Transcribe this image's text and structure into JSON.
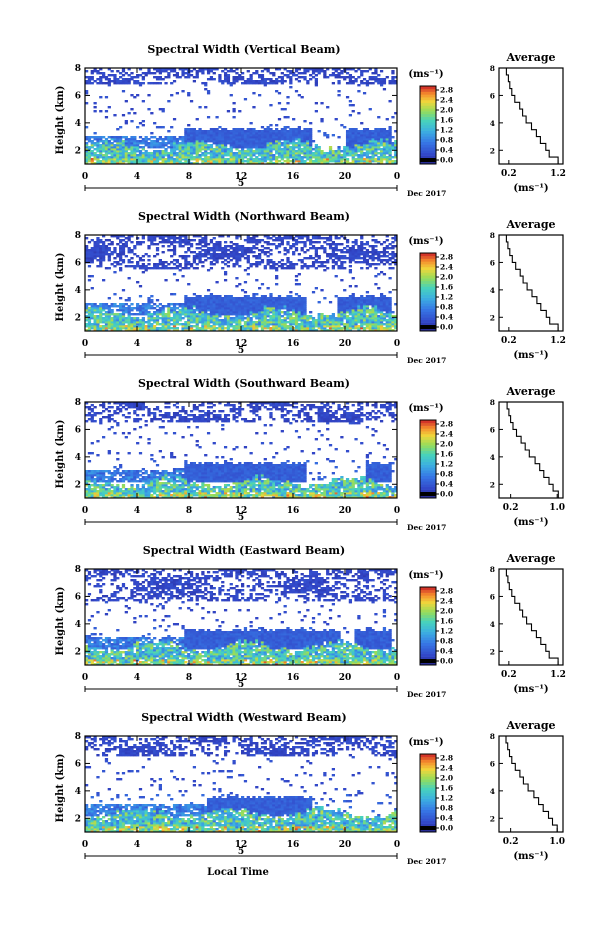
{
  "figure": {
    "xlabel": "Local Time",
    "date_label": "Dec 2017",
    "day_label": "5",
    "ylabel": "Height (km)",
    "avg_title": "Average",
    "unit": "(ms⁻¹)"
  },
  "chart_data": [
    {
      "type": "heatmap",
      "title": "Spectral Width (Vertical Beam)",
      "xlabel": "Local Time",
      "ylabel": "Height (km)",
      "x_ticks": [
        "0",
        "4",
        "8",
        "12",
        "16",
        "20",
        "0"
      ],
      "y_ticks": [
        "2",
        "4",
        "6",
        "8"
      ],
      "xlim": [
        0,
        24
      ],
      "ylim": [
        1,
        8
      ],
      "colorbar": {
        "label": "(ms⁻¹)",
        "ticks": [
          "0.0",
          "0.4",
          "0.8",
          "1.2",
          "1.6",
          "2.0",
          "2.4",
          "2.8"
        ],
        "range": [
          0,
          2.8
        ]
      },
      "colors": {
        "low": "#2b2f9e",
        "mid": "#3ab7d8",
        "high": "#d6242a"
      },
      "regimes": {
        "upper_layer_km": [
          6.9,
          8.0
        ],
        "mid_layer_km": [
          2.1,
          3.7
        ],
        "lower_layer_km": [
          1.0,
          2.4
        ],
        "mid_layer_time_h": [
          7.6,
          23.6
        ],
        "gap_time_h": [
          17.5,
          20.0
        ]
      },
      "average_profile": {
        "title": "Average",
        "xlabel": "(ms⁻¹)",
        "x_ticks": [
          "0.2",
          "1.2"
        ],
        "xlim": [
          0.0,
          1.3
        ],
        "ylim": [
          1,
          8
        ],
        "height_km": [
          1.0,
          1.5,
          2.0,
          2.5,
          3.0,
          3.5,
          4.0,
          4.5,
          5.0,
          5.5,
          6.0,
          6.5,
          7.0,
          7.5,
          8.0
        ],
        "width_ms": [
          1.2,
          1.02,
          0.95,
          0.84,
          0.76,
          0.66,
          0.55,
          0.48,
          0.42,
          0.32,
          0.26,
          0.22,
          0.19,
          0.15,
          0.12
        ]
      }
    },
    {
      "type": "heatmap",
      "title": "Spectral Width (Northward Beam)",
      "xlabel": "Local Time",
      "ylabel": "Height (km)",
      "x_ticks": [
        "0",
        "4",
        "8",
        "12",
        "16",
        "20",
        "0"
      ],
      "y_ticks": [
        "2",
        "4",
        "6",
        "8"
      ],
      "xlim": [
        0,
        24
      ],
      "ylim": [
        1,
        8
      ],
      "colorbar": {
        "label": "(ms⁻¹)",
        "ticks": [
          "0.0",
          "0.4",
          "0.8",
          "1.2",
          "1.6",
          "2.0",
          "2.4",
          "2.8"
        ],
        "range": [
          0,
          2.8
        ]
      },
      "colors": {
        "low": "#2b2f9e",
        "mid": "#3ab7d8",
        "high": "#d6242a"
      },
      "regimes": {
        "upper_layer_km": [
          5.5,
          8.0
        ],
        "mid_layer_km": [
          2.1,
          3.7
        ],
        "lower_layer_km": [
          1.0,
          2.4
        ],
        "mid_layer_time_h": [
          7.6,
          23.6
        ],
        "gap_time_h": [
          17.0,
          19.5
        ]
      },
      "average_profile": {
        "title": "Average",
        "xlabel": "(ms⁻¹)",
        "x_ticks": [
          "0.2",
          "1.2"
        ],
        "xlim": [
          0.0,
          1.3
        ],
        "ylim": [
          1,
          8
        ],
        "height_km": [
          1.0,
          1.5,
          2.0,
          2.5,
          3.0,
          3.5,
          4.0,
          4.5,
          5.0,
          5.5,
          6.0,
          6.5,
          7.0,
          7.5,
          8.0
        ],
        "width_ms": [
          1.2,
          1.03,
          0.96,
          0.85,
          0.77,
          0.67,
          0.57,
          0.49,
          0.43,
          0.34,
          0.27,
          0.22,
          0.18,
          0.15,
          0.12
        ]
      }
    },
    {
      "type": "heatmap",
      "title": "Spectral Width (Southward Beam)",
      "xlabel": "Local Time",
      "ylabel": "Height (km)",
      "x_ticks": [
        "0",
        "4",
        "8",
        "12",
        "16",
        "20",
        "0"
      ],
      "y_ticks": [
        "2",
        "4",
        "6",
        "8"
      ],
      "xlim": [
        0,
        24
      ],
      "ylim": [
        1,
        8
      ],
      "colorbar": {
        "label": "(ms⁻¹)",
        "ticks": [
          "0.0",
          "0.4",
          "0.8",
          "1.2",
          "1.6",
          "2.0",
          "2.4",
          "2.8"
        ],
        "range": [
          0,
          2.8
        ]
      },
      "colors": {
        "low": "#2b2f9e",
        "mid": "#3ab7d8",
        "high": "#d6242a"
      },
      "regimes": {
        "upper_layer_km": [
          6.5,
          8.0
        ],
        "mid_layer_km": [
          2.1,
          3.7
        ],
        "lower_layer_km": [
          1.0,
          2.2
        ],
        "mid_layer_time_h": [
          7.6,
          23.6
        ],
        "gap_time_h": [
          17.0,
          21.5
        ]
      },
      "average_profile": {
        "title": "Average",
        "xlabel": "(ms⁻¹)",
        "x_ticks": [
          "0.2",
          "1.0"
        ],
        "xlim": [
          0.0,
          1.1
        ],
        "ylim": [
          1,
          8
        ],
        "height_km": [
          1.0,
          1.5,
          2.0,
          2.5,
          3.0,
          3.5,
          4.0,
          4.5,
          5.0,
          5.5,
          6.0,
          6.5,
          7.0,
          7.5,
          8.0
        ],
        "width_ms": [
          1.02,
          0.93,
          0.86,
          0.77,
          0.7,
          0.62,
          0.52,
          0.45,
          0.38,
          0.3,
          0.24,
          0.2,
          0.17,
          0.14,
          0.12
        ]
      }
    },
    {
      "type": "heatmap",
      "title": "Spectral Width (Eastward Beam)",
      "xlabel": "Local Time",
      "ylabel": "Height (km)",
      "x_ticks": [
        "0",
        "4",
        "8",
        "12",
        "16",
        "20",
        "0"
      ],
      "y_ticks": [
        "2",
        "4",
        "6",
        "8"
      ],
      "xlim": [
        0,
        24
      ],
      "ylim": [
        1,
        8
      ],
      "colorbar": {
        "label": "(ms⁻¹)",
        "ticks": [
          "0.0",
          "0.4",
          "0.8",
          "1.2",
          "1.6",
          "2.0",
          "2.4",
          "2.8"
        ],
        "range": [
          0,
          2.8
        ]
      },
      "colors": {
        "low": "#2b2f9e",
        "mid": "#3ab7d8",
        "high": "#d6242a"
      },
      "regimes": {
        "upper_layer_km": [
          5.6,
          8.0
        ],
        "mid_layer_km": [
          2.1,
          3.7
        ],
        "lower_layer_km": [
          1.0,
          2.4
        ],
        "mid_layer_time_h": [
          7.6,
          23.6
        ],
        "gap_time_h": [
          19.7,
          20.8
        ]
      },
      "average_profile": {
        "title": "Average",
        "xlabel": "(ms⁻¹)",
        "x_ticks": [
          "0.2",
          "1.2"
        ],
        "xlim": [
          0.0,
          1.3
        ],
        "ylim": [
          1,
          8
        ],
        "height_km": [
          1.0,
          1.5,
          2.0,
          2.5,
          3.0,
          3.5,
          4.0,
          4.5,
          5.0,
          5.5,
          6.0,
          6.5,
          7.0,
          7.5,
          8.0
        ],
        "width_ms": [
          1.2,
          1.02,
          0.95,
          0.85,
          0.76,
          0.66,
          0.56,
          0.48,
          0.42,
          0.32,
          0.26,
          0.21,
          0.18,
          0.15,
          0.12
        ]
      }
    },
    {
      "type": "heatmap",
      "title": "Spectral Width (Westward Beam)",
      "xlabel": "Local Time",
      "ylabel": "Height (km)",
      "x_ticks": [
        "0",
        "4",
        "8",
        "12",
        "16",
        "20",
        "0"
      ],
      "y_ticks": [
        "2",
        "4",
        "6",
        "8"
      ],
      "xlim": [
        0,
        24
      ],
      "ylim": [
        1,
        8
      ],
      "colorbar": {
        "label": "(ms⁻¹)",
        "ticks": [
          "0.0",
          "0.4",
          "0.8",
          "1.2",
          "1.6",
          "2.0",
          "2.4",
          "2.8"
        ],
        "range": [
          0,
          2.8
        ]
      },
      "colors": {
        "low": "#2b2f9e",
        "mid": "#3ab7d8",
        "high": "#d6242a"
      },
      "regimes": {
        "upper_layer_km": [
          6.5,
          8.0
        ],
        "mid_layer_km": [
          2.1,
          3.7
        ],
        "lower_layer_km": [
          1.0,
          2.4
        ],
        "mid_layer_time_h": [
          9.3,
          17.5
        ],
        "gap_time_h": [
          17.5,
          22.5
        ]
      },
      "average_profile": {
        "title": "Average",
        "xlabel": "(ms⁻¹)",
        "x_ticks": [
          "0.2",
          "1.0"
        ],
        "xlim": [
          0.0,
          1.1
        ],
        "ylim": [
          1,
          8
        ],
        "height_km": [
          1.0,
          1.5,
          2.0,
          2.5,
          3.0,
          3.5,
          4.0,
          4.5,
          5.0,
          5.5,
          6.0,
          6.5,
          7.0,
          7.5,
          8.0
        ],
        "width_ms": [
          1.0,
          0.92,
          0.85,
          0.76,
          0.68,
          0.6,
          0.5,
          0.42,
          0.36,
          0.28,
          0.22,
          0.18,
          0.15,
          0.12,
          0.1
        ]
      }
    }
  ]
}
